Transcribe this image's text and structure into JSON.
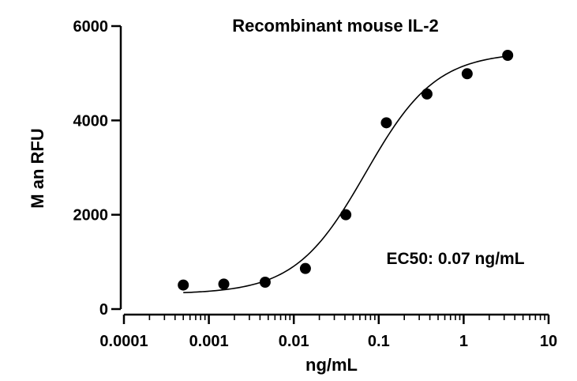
{
  "chart_data": {
    "type": "scatter",
    "title": "Recombinant mouse IL-2",
    "xlabel": "ng/mL",
    "ylabel": "M  an RFU",
    "x_scale": "log",
    "xlim": [
      0.0001,
      10
    ],
    "ylim": [
      0,
      6000
    ],
    "x_ticks": [
      0.0001,
      0.001,
      0.01,
      0.1,
      1,
      10
    ],
    "x_tick_labels": [
      "0.0001",
      "0.001",
      "0.01",
      "0.1",
      "1",
      "10"
    ],
    "y_ticks": [
      0,
      2000,
      4000,
      6000
    ],
    "y_tick_labels": [
      "0",
      "2000",
      "4000",
      "6000"
    ],
    "grid": false,
    "legend": "none",
    "series": [
      {
        "x": [
          0.0005,
          0.0015,
          0.0046,
          0.0137,
          0.041,
          0.123,
          0.37,
          1.1,
          3.3
        ],
        "y": [
          510,
          530,
          570,
          860,
          2000,
          3950,
          4560,
          4990,
          5380
        ]
      }
    ],
    "fit_curve": {
      "model": "4PL",
      "bottom": 320,
      "top": 5450,
      "ec50": 0.07,
      "hill_slope": 1.05
    },
    "annotations": [
      {
        "text": "EC50: 0.07 ng/mL"
      }
    ],
    "colors": {
      "points": "#000000",
      "curve": "#000000",
      "axes": "#000000"
    }
  }
}
